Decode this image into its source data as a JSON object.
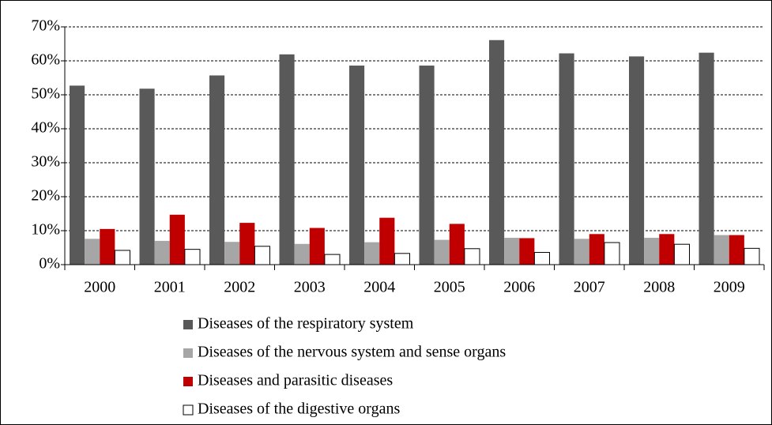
{
  "chart_data": {
    "type": "bar",
    "categories": [
      "2000",
      "2001",
      "2002",
      "2003",
      "2004",
      "2005",
      "2006",
      "2007",
      "2008",
      "2009"
    ],
    "series": [
      {
        "name": "Diseases of the respiratory system",
        "color": "#595959",
        "values": [
          52.7,
          51.8,
          55.7,
          61.9,
          58.6,
          58.6,
          66.1,
          62.2,
          61.3,
          62.4
        ]
      },
      {
        "name": "Diseases of the nervous system and sense organs",
        "color": "#a6a6a6",
        "values": [
          7.6,
          7.0,
          6.7,
          6.1,
          6.6,
          7.3,
          7.9,
          7.6,
          7.9,
          8.7
        ]
      },
      {
        "name": "Diseases and parasitic diseases",
        "color": "#c00000",
        "values": [
          10.5,
          14.7,
          12.3,
          10.8,
          13.8,
          12.0,
          7.8,
          9.0,
          9.0,
          8.7
        ]
      },
      {
        "name": "Diseases of the digestive organs",
        "color": "#ffffff",
        "values": [
          4.2,
          4.5,
          5.4,
          3.0,
          3.3,
          4.7,
          3.6,
          6.5,
          6.0,
          4.8
        ]
      }
    ],
    "ylim": [
      0,
      70
    ],
    "yticks": [
      {
        "value": 0,
        "label": "0%"
      },
      {
        "value": 10,
        "label": "10%"
      },
      {
        "value": 20,
        "label": "20%"
      },
      {
        "value": 30,
        "label": "30%"
      },
      {
        "value": 40,
        "label": "40%"
      },
      {
        "value": 50,
        "label": "50%"
      },
      {
        "value": 60,
        "label": "60%"
      },
      {
        "value": 70,
        "label": "70%"
      }
    ],
    "grid": true,
    "legend": "bottom"
  }
}
